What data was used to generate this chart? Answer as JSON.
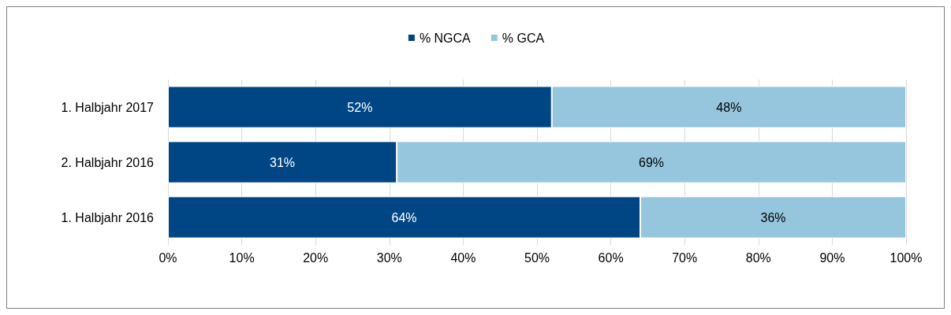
{
  "chart_data": {
    "type": "bar",
    "orientation": "horizontal",
    "stacked": true,
    "categories": [
      "1. Halbjahr 2017",
      "2. Halbjahr 2016",
      "1. Halbjahr 2016"
    ],
    "series": [
      {
        "name": "% NGCA",
        "color": "#004685",
        "values": [
          52,
          31,
          64
        ],
        "value_labels": [
          "52%",
          "31%",
          "64%"
        ]
      },
      {
        "name": "% GCA",
        "color": "#95c6de",
        "values": [
          48,
          69,
          36
        ],
        "value_labels": [
          "48%",
          "69%",
          "36%"
        ]
      }
    ],
    "xlim": [
      0,
      100
    ],
    "xticks": [
      {
        "value": 0,
        "label": "0%"
      },
      {
        "value": 10,
        "label": "10%"
      },
      {
        "value": 20,
        "label": "20%"
      },
      {
        "value": 30,
        "label": "30%"
      },
      {
        "value": 40,
        "label": "40%"
      },
      {
        "value": 50,
        "label": "50%"
      },
      {
        "value": 60,
        "label": "60%"
      },
      {
        "value": 70,
        "label": "70%"
      },
      {
        "value": 80,
        "label": "80%"
      },
      {
        "value": 90,
        "label": "90%"
      },
      {
        "value": 100,
        "label": "100%"
      }
    ],
    "grid": "x",
    "legend": "top"
  }
}
